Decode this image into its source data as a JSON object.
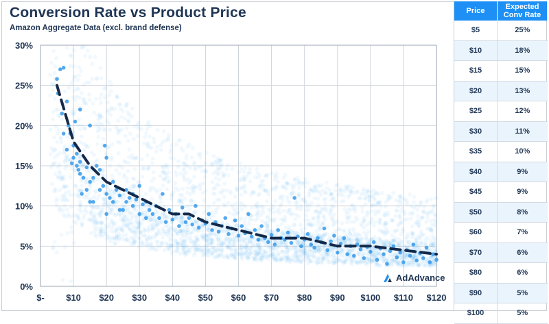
{
  "title": "Conversion Rate vs Product Price",
  "subtitle": "Amazon Aggregate Data (excl. brand defense)",
  "logo_text": "AdAdvance",
  "colors": {
    "title": "#1f3554",
    "scatter": "#2a93e8",
    "trend": "#142a4a",
    "header": "#1e90f5",
    "grid": "#c9ced6"
  },
  "chart_data": {
    "type": "scatter",
    "title": "Conversion Rate vs Product Price",
    "subtitle": "Amazon Aggregate Data (excl. brand defense)",
    "x_range": [
      0,
      120
    ],
    "y_range": [
      0,
      30
    ],
    "x_ticks": [
      "$-",
      "$10",
      "$20",
      "$30",
      "$40",
      "$50",
      "$60",
      "$70",
      "$80",
      "$90",
      "$100",
      "$110",
      "$120"
    ],
    "y_ticks": [
      "0%",
      "5%",
      "10%",
      "15%",
      "20%",
      "25%",
      "30%"
    ],
    "grid": true,
    "trend_line": {
      "style": "dashed",
      "model": "power",
      "points": [
        [
          5,
          25
        ],
        [
          10,
          18
        ],
        [
          15,
          15
        ],
        [
          20,
          13
        ],
        [
          25,
          12
        ],
        [
          30,
          11
        ],
        [
          35,
          10
        ],
        [
          40,
          9
        ],
        [
          45,
          9
        ],
        [
          50,
          8
        ],
        [
          60,
          7
        ],
        [
          70,
          6
        ],
        [
          80,
          6
        ],
        [
          90,
          5
        ],
        [
          100,
          5
        ],
        [
          120,
          4
        ]
      ]
    },
    "points": [
      [
        5,
        25.8
      ],
      [
        5.3,
        24
      ],
      [
        6,
        27
      ],
      [
        7,
        27.2
      ],
      [
        6.5,
        21.5
      ],
      [
        8,
        23
      ],
      [
        8.5,
        20
      ],
      [
        9,
        19
      ],
      [
        10,
        17.5
      ],
      [
        10,
        16
      ],
      [
        11,
        15
      ],
      [
        11.5,
        14.5
      ],
      [
        12,
        14
      ],
      [
        12,
        15.5
      ],
      [
        13,
        13.5
      ],
      [
        14,
        14.8
      ],
      [
        15,
        13
      ],
      [
        16,
        13.5
      ],
      [
        17,
        15
      ],
      [
        18,
        12
      ],
      [
        19,
        12.5
      ],
      [
        19.5,
        17.5
      ],
      [
        20,
        11.5
      ],
      [
        21,
        11
      ],
      [
        22,
        10.5
      ],
      [
        23,
        12
      ],
      [
        24,
        11.3
      ],
      [
        25,
        9.5
      ],
      [
        26,
        10.5
      ],
      [
        27,
        11
      ],
      [
        28,
        10
      ],
      [
        29,
        10.8
      ],
      [
        30,
        9
      ],
      [
        31,
        10.2
      ],
      [
        32,
        8.5
      ],
      [
        33,
        9.5
      ],
      [
        34,
        9
      ],
      [
        35,
        10
      ],
      [
        36,
        8.5
      ],
      [
        37,
        11.5
      ],
      [
        38,
        8
      ],
      [
        39,
        9.5
      ],
      [
        40,
        8.3
      ],
      [
        41,
        9
      ],
      [
        42,
        7.5
      ],
      [
        43,
        9.8
      ],
      [
        44,
        8
      ],
      [
        45,
        8.5
      ],
      [
        46,
        7.7
      ],
      [
        47,
        10
      ],
      [
        48,
        7.3
      ],
      [
        49,
        8.2
      ],
      [
        50,
        7.8
      ],
      [
        51,
        9
      ],
      [
        52,
        7
      ],
      [
        53,
        8
      ],
      [
        54,
        6.8
      ],
      [
        55,
        7.5
      ],
      [
        56,
        8.5
      ],
      [
        57,
        6.5
      ],
      [
        58,
        7.2
      ],
      [
        59,
        8.2
      ],
      [
        60,
        6.3
      ],
      [
        61,
        7.5
      ],
      [
        62,
        6.6
      ],
      [
        63,
        9
      ],
      [
        64,
        6.2
      ],
      [
        65,
        7
      ],
      [
        66,
        5.8
      ],
      [
        67,
        7.5
      ],
      [
        68,
        6
      ],
      [
        69,
        5.5
      ],
      [
        70,
        6.4
      ],
      [
        71,
        5.2
      ],
      [
        72,
        7
      ],
      [
        73,
        6
      ],
      [
        74,
        5.8
      ],
      [
        75,
        6.7
      ],
      [
        76,
        5.4
      ],
      [
        77,
        11
      ],
      [
        78,
        6.2
      ],
      [
        79,
        5
      ],
      [
        80,
        5.8
      ],
      [
        81,
        6.5
      ],
      [
        82,
        5.2
      ],
      [
        83,
        4.8
      ],
      [
        84,
        6
      ],
      [
        85,
        5.5
      ],
      [
        86,
        7.2
      ],
      [
        87,
        4.5
      ],
      [
        88,
        5.6
      ],
      [
        89,
        6.3
      ],
      [
        90,
        4.2
      ],
      [
        91,
        5.3
      ],
      [
        92,
        6
      ],
      [
        93,
        4
      ],
      [
        94,
        5
      ],
      [
        95,
        3.8
      ],
      [
        96,
        5.2
      ],
      [
        97,
        4.6
      ],
      [
        98,
        3.5
      ],
      [
        99,
        4.9
      ],
      [
        100,
        4.3
      ],
      [
        101,
        5.5
      ],
      [
        102,
        3.3
      ],
      [
        103,
        4.7
      ],
      [
        104,
        4
      ],
      [
        105,
        2.8
      ],
      [
        106,
        4.4
      ],
      [
        107,
        5
      ],
      [
        108,
        3.6
      ],
      [
        109,
        4.2
      ],
      [
        110,
        3
      ],
      [
        111,
        4.5
      ],
      [
        112,
        3.8
      ],
      [
        113,
        5.2
      ],
      [
        114,
        3.2
      ],
      [
        115,
        4.1
      ],
      [
        116,
        3.5
      ],
      [
        117,
        4.8
      ],
      [
        118,
        3
      ],
      [
        119,
        4
      ],
      [
        120,
        3.3
      ],
      [
        15,
        20
      ],
      [
        10.5,
        20.5
      ],
      [
        12,
        22
      ],
      [
        14,
        12
      ],
      [
        16,
        10.5
      ],
      [
        18,
        14.5
      ],
      [
        20,
        16
      ],
      [
        22,
        13
      ],
      [
        24,
        9.5
      ],
      [
        26,
        12
      ],
      [
        28,
        11.5
      ],
      [
        30,
        12.5
      ],
      [
        32,
        10.5
      ],
      [
        12.5,
        11.5
      ],
      [
        20,
        9
      ],
      [
        15,
        10.5
      ],
      [
        8,
        17
      ],
      [
        9.5,
        15.3
      ],
      [
        11,
        16.5
      ],
      [
        7,
        19
      ]
    ]
  },
  "table": {
    "headers": [
      "Price",
      "Expected Conv Rate"
    ],
    "rows": [
      [
        "$5",
        "25%"
      ],
      [
        "$10",
        "18%"
      ],
      [
        "$15",
        "15%"
      ],
      [
        "$20",
        "13%"
      ],
      [
        "$25",
        "12%"
      ],
      [
        "$30",
        "11%"
      ],
      [
        "$35",
        "10%"
      ],
      [
        "$40",
        "9%"
      ],
      [
        "$45",
        "9%"
      ],
      [
        "$50",
        "8%"
      ],
      [
        "$60",
        "7%"
      ],
      [
        "$70",
        "6%"
      ],
      [
        "$80",
        "6%"
      ],
      [
        "$90",
        "5%"
      ],
      [
        "$100",
        "5%"
      ]
    ]
  }
}
